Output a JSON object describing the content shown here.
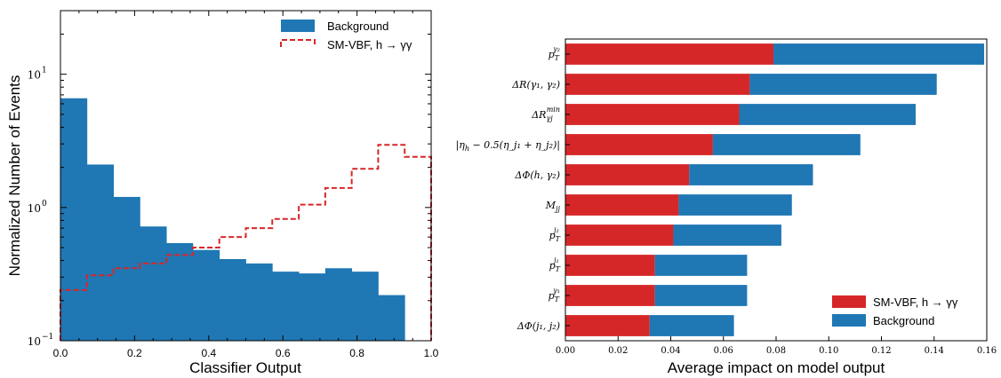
{
  "chart_data": [
    {
      "type": "histogram",
      "xlabel": "Classifier Output",
      "ylabel": "Normalized Number of Events",
      "xlim": [
        0.0,
        1.0
      ],
      "ylim": [
        0.1,
        30
      ],
      "yscale": "log",
      "xticks": [
        "0.0",
        "0.2",
        "0.4",
        "0.6",
        "0.8",
        "1.0"
      ],
      "ytick_labels": [
        {
          "value": 10,
          "base": "10",
          "exp": "1"
        },
        {
          "value": 1,
          "base": "10",
          "exp": "0"
        },
        {
          "value": 0.1,
          "base": "10",
          "exp": "−1"
        }
      ],
      "bin_edges": [
        0.0,
        0.0714,
        0.1429,
        0.2143,
        0.2857,
        0.3571,
        0.4286,
        0.5,
        0.5714,
        0.6429,
        0.7143,
        0.7857,
        0.8571,
        0.9286,
        1.0
      ],
      "legend_position": "upper-right",
      "series": [
        {
          "name": "Background",
          "style": "filled",
          "color": "#1f77b4",
          "values": [
            6.6,
            2.1,
            1.2,
            0.72,
            0.54,
            0.48,
            0.41,
            0.38,
            0.33,
            0.32,
            0.35,
            0.33,
            0.22,
            0.0
          ]
        },
        {
          "name": "SM-VBF, h → γγ",
          "style": "dashed-step",
          "color": "#d62728",
          "values": [
            0.24,
            0.31,
            0.35,
            0.38,
            0.44,
            0.5,
            0.6,
            0.7,
            0.82,
            1.05,
            1.4,
            1.95,
            2.95,
            2.4
          ]
        }
      ]
    },
    {
      "type": "stacked-barh",
      "xlabel": "Average impact on model output",
      "xlim": [
        0.0,
        0.16
      ],
      "xticks": [
        "0.00",
        "0.02",
        "0.04",
        "0.06",
        "0.08",
        "0.10",
        "0.12",
        "0.14",
        "0.16"
      ],
      "legend_position": "lower-right",
      "categories": [
        {
          "label": "p",
          "sub": "T",
          "sup": "γ₂"
        },
        {
          "label": "ΔR(γ₁, γ₂)"
        },
        {
          "label": "ΔR",
          "sub": "γj",
          "sup": "min"
        },
        {
          "label": "|η",
          "sub": "h",
          "rest": " − 0.5(η_j₁ + η_j₂)|"
        },
        {
          "label": "ΔΦ(h, γ₂)"
        },
        {
          "label": "M",
          "sub": "jj"
        },
        {
          "label": "p",
          "sub": "T",
          "sup": "j₂"
        },
        {
          "label": "p",
          "sub": "T",
          "sup": "j₁"
        },
        {
          "label": "p",
          "sub": "T",
          "sup": "γ₁"
        },
        {
          "label": "ΔΦ(j₁, j₂)"
        }
      ],
      "series": [
        {
          "name": "SM-VBF, h → γγ",
          "color": "#d62728",
          "values": [
            0.079,
            0.07,
            0.066,
            0.056,
            0.047,
            0.043,
            0.041,
            0.034,
            0.034,
            0.032
          ]
        },
        {
          "name": "Background",
          "color": "#1f77b4",
          "values": [
            0.08,
            0.071,
            0.067,
            0.056,
            0.047,
            0.043,
            0.041,
            0.035,
            0.035,
            0.032
          ]
        }
      ]
    }
  ]
}
